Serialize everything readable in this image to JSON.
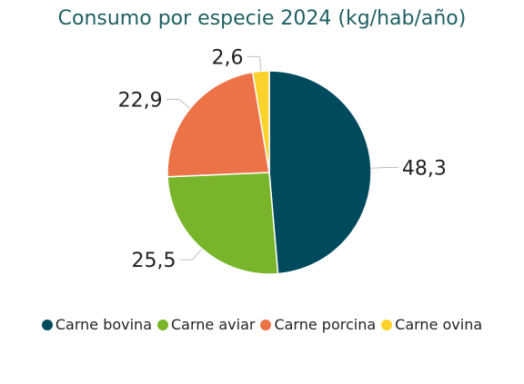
{
  "chart_data": {
    "type": "pie",
    "title": "Consumo por especie 2024 (kg/hab/año)",
    "categories": [
      "Carne bovina",
      "Carne aviar",
      "Carne porcina",
      "Carne ovina"
    ],
    "values": [
      48.3,
      25.5,
      22.9,
      2.6
    ],
    "value_labels": [
      "48,3",
      "25,5",
      "22,9",
      "2,6"
    ],
    "colors": [
      "#004a5e",
      "#79b52a",
      "#ec7248",
      "#fcd22c"
    ],
    "legend_position": "bottom"
  }
}
